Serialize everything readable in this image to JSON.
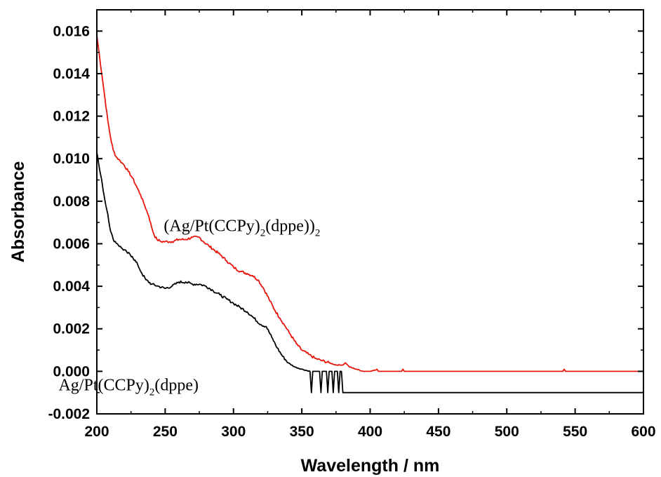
{
  "chart_data": {
    "type": "line",
    "title": "",
    "xlabel": "Wavelength / nm",
    "ylabel": "Absorbance",
    "xlim": [
      200,
      600
    ],
    "ylim": [
      -0.002,
      0.017
    ],
    "x_ticks": [
      200,
      250,
      300,
      350,
      400,
      450,
      500,
      550,
      600
    ],
    "y_ticks": [
      -0.002,
      0.0,
      0.002,
      0.004,
      0.006,
      0.008,
      0.01,
      0.012,
      0.014,
      0.016
    ],
    "x_tick_labels": [
      "200",
      "250",
      "300",
      "350",
      "400",
      "450",
      "500",
      "550",
      "600"
    ],
    "y_tick_labels": [
      "-0.002",
      "0.000",
      "0.002",
      "0.004",
      "0.006",
      "0.008",
      "0.010",
      "0.012",
      "0.014",
      "0.016"
    ],
    "grid": false,
    "series": [
      {
        "color": "#e8160c",
        "points": [
          [
            200,
            0.0158
          ],
          [
            202,
            0.0148
          ],
          [
            204,
            0.0138
          ],
          [
            206,
            0.0128
          ],
          [
            208,
            0.0118
          ],
          [
            210,
            0.011
          ],
          [
            212,
            0.0104
          ],
          [
            214,
            0.0101
          ],
          [
            217,
            0.0099
          ],
          [
            220,
            0.0097
          ],
          [
            223,
            0.0094
          ],
          [
            226,
            0.0091
          ],
          [
            229,
            0.0087
          ],
          [
            232,
            0.0083
          ],
          [
            235,
            0.0078
          ],
          [
            238,
            0.0073
          ],
          [
            240,
            0.0068
          ],
          [
            242,
            0.0064
          ],
          [
            244,
            0.0062
          ],
          [
            247,
            0.0061
          ],
          [
            250,
            0.0061
          ],
          [
            255,
            0.0061
          ],
          [
            260,
            0.0062
          ],
          [
            265,
            0.0062
          ],
          [
            270,
            0.0063
          ],
          [
            275,
            0.0063
          ],
          [
            278,
            0.0061
          ],
          [
            282,
            0.0059
          ],
          [
            286,
            0.0057
          ],
          [
            290,
            0.0055
          ],
          [
            295,
            0.0052
          ],
          [
            300,
            0.0049
          ],
          [
            305,
            0.0047
          ],
          [
            310,
            0.0046
          ],
          [
            314,
            0.0045
          ],
          [
            318,
            0.0043
          ],
          [
            322,
            0.0039
          ],
          [
            326,
            0.0034
          ],
          [
            330,
            0.0029
          ],
          [
            334,
            0.0025
          ],
          [
            338,
            0.0021
          ],
          [
            342,
            0.0017
          ],
          [
            346,
            0.0013
          ],
          [
            350,
            0.001
          ],
          [
            355,
            0.0008
          ],
          [
            360,
            0.0006
          ],
          [
            365,
            0.0005
          ],
          [
            370,
            0.0004
          ],
          [
            375,
            0.0003
          ],
          [
            380,
            0.0003
          ],
          [
            382,
            0.0004
          ],
          [
            385,
            0.0002
          ],
          [
            390,
            0.0001
          ],
          [
            395,
            0.0
          ],
          [
            400,
            0.0
          ],
          [
            405,
            0.0001
          ],
          [
            406,
            0.0
          ],
          [
            423,
            0.0
          ],
          [
            424,
            0.0001
          ],
          [
            425,
            0.0
          ],
          [
            541,
            0.0
          ],
          [
            542,
            0.0001
          ],
          [
            543,
            0.0
          ],
          [
            600,
            0.0
          ]
        ]
      },
      {
        "color": "#000000",
        "points": [
          [
            200,
            0.0103
          ],
          [
            202,
            0.0095
          ],
          [
            204,
            0.0088
          ],
          [
            206,
            0.008
          ],
          [
            208,
            0.0074
          ],
          [
            210,
            0.0066
          ],
          [
            212,
            0.0062
          ],
          [
            215,
            0.006
          ],
          [
            218,
            0.0058
          ],
          [
            222,
            0.0056
          ],
          [
            226,
            0.0054
          ],
          [
            230,
            0.005
          ],
          [
            233,
            0.0046
          ],
          [
            236,
            0.0043
          ],
          [
            240,
            0.0041
          ],
          [
            245,
            0.004
          ],
          [
            250,
            0.0039
          ],
          [
            255,
            0.004
          ],
          [
            260,
            0.0042
          ],
          [
            265,
            0.0042
          ],
          [
            270,
            0.0041
          ],
          [
            275,
            0.0041
          ],
          [
            280,
            0.004
          ],
          [
            285,
            0.0038
          ],
          [
            290,
            0.0036
          ],
          [
            295,
            0.0034
          ],
          [
            300,
            0.0032
          ],
          [
            305,
            0.003
          ],
          [
            310,
            0.0028
          ],
          [
            315,
            0.0025
          ],
          [
            320,
            0.0022
          ],
          [
            324,
            0.0021
          ],
          [
            328,
            0.0016
          ],
          [
            332,
            0.0011
          ],
          [
            336,
            0.0007
          ],
          [
            340,
            0.0004
          ],
          [
            345,
            0.0002
          ],
          [
            350,
            0.0001
          ],
          [
            356,
            0.0
          ],
          [
            357,
            -0.001
          ],
          [
            358,
            0.0
          ],
          [
            363,
            0.0
          ],
          [
            364,
            -0.001
          ],
          [
            365,
            0.0
          ],
          [
            368,
            0.0
          ],
          [
            369,
            -0.001
          ],
          [
            370,
            0.0
          ],
          [
            372,
            0.0
          ],
          [
            373,
            -0.001
          ],
          [
            374,
            0.0
          ],
          [
            376,
            0.0
          ],
          [
            377,
            -0.001
          ],
          [
            378,
            0.0
          ],
          [
            379,
            0.0
          ],
          [
            380,
            -0.001
          ],
          [
            600,
            -0.001
          ]
        ]
      }
    ],
    "annotations": [
      {
        "text": "(Ag/Pt(CCPy)",
        "sub": "2",
        "text2": "(dppe))",
        "sub2": "2",
        "x": 249,
        "y": 0.0066
      },
      {
        "text": "Ag/Pt(CCPy)",
        "sub": "2",
        "text2": "(dppe)",
        "sub2": "",
        "x": 172,
        "y": -0.0009
      }
    ]
  }
}
